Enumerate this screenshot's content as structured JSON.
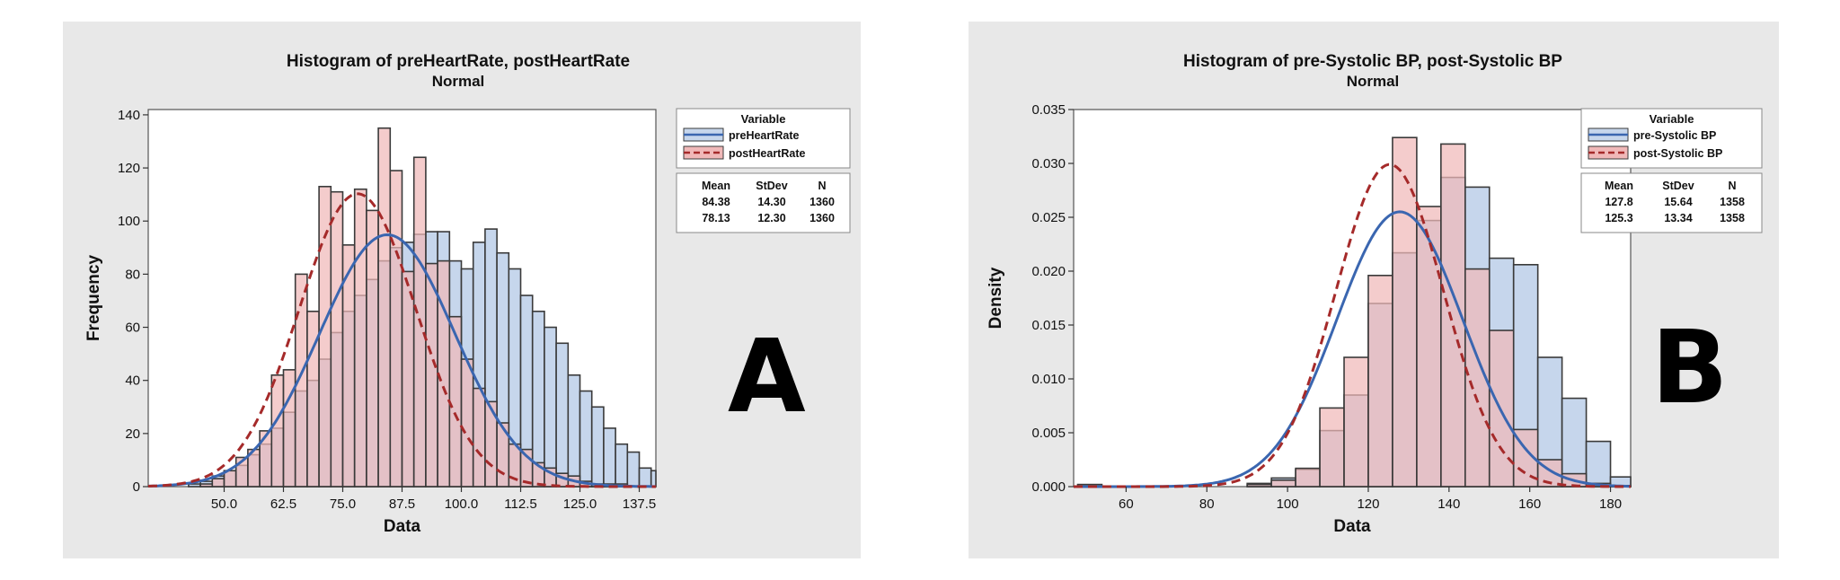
{
  "panels": [
    {
      "letter": "A",
      "chart_data": {
        "type": "bar",
        "title": "Histogram of preHeartRate, postHeartRate",
        "subtitle": "Normal",
        "xlabel": "Data",
        "ylabel": "Frequency",
        "xlim": [
          34,
          141
        ],
        "ylim": [
          0,
          142
        ],
        "x_ticks": [
          50.0,
          62.5,
          75.0,
          87.5,
          100.0,
          112.5,
          125.0,
          137.5
        ],
        "x_tick_labels": [
          "50.0",
          "62.5",
          "75.0",
          "87.5",
          "100.0",
          "112.5",
          "125.0",
          "137.5"
        ],
        "y_ticks": [
          0,
          20,
          40,
          60,
          80,
          100,
          120,
          140
        ],
        "y_tick_labels": [
          "0",
          "20",
          "40",
          "60",
          "80",
          "100",
          "120",
          "140"
        ],
        "bin_width": 2.5,
        "bin_start": 35,
        "legend_title": "Variable",
        "legend_position": "right",
        "stats_headers": [
          "Mean",
          "StDev",
          "N"
        ],
        "series": [
          {
            "name": "preHeartRate",
            "color": "#3a66b0",
            "fill": "#c6d6ec",
            "line": "solid",
            "mean": "84.38",
            "stdev": "14.30",
            "n": "1360",
            "mean_num": 84.38,
            "sd_num": 14.3,
            "n_num": 1360,
            "values": [
              0,
              0,
              0,
              1,
              2,
              4,
              6,
              8,
              12,
              16,
              22,
              28,
              36,
              40,
              48,
              58,
              66,
              72,
              78,
              85,
              90,
              92,
              95,
              96,
              96,
              85,
              82,
              92,
              97,
              88,
              82,
              72,
              66,
              60,
              54,
              42,
              36,
              30,
              22,
              16,
              13,
              7,
              6,
              4,
              3,
              2,
              1,
              1,
              0,
              0,
              0,
              0,
              0,
              0,
              2,
              0,
              0,
              0
            ]
          },
          {
            "name": "postHeartRate",
            "color": "#a52a2a",
            "fill": "#f0b8b8",
            "line": "dashed",
            "mean": "78.13",
            "stdev": "12.30",
            "n": "1360",
            "mean_num": 78.13,
            "sd_num": 12.3,
            "n_num": 1360,
            "values": [
              0,
              0,
              0,
              0,
              1,
              3,
              6,
              11,
              14,
              21,
              42,
              44,
              80,
              66,
              113,
              111,
              91,
              112,
              104,
              135,
              119,
              81,
              124,
              84,
              85,
              64,
              48,
              37,
              32,
              24,
              16,
              14,
              9,
              7,
              5,
              4,
              2,
              1,
              1,
              1,
              0,
              0,
              0,
              0,
              0,
              0,
              0,
              0,
              0,
              0,
              0,
              0,
              0,
              0,
              0,
              0,
              0,
              0
            ]
          }
        ]
      }
    },
    {
      "letter": "B",
      "chart_data": {
        "type": "bar",
        "title": "Histogram of pre-Systolic BP, post-Systolic BP",
        "subtitle": "Normal",
        "xlabel": "Data",
        "ylabel": "Density",
        "xlim": [
          47,
          185
        ],
        "ylim": [
          0,
          0.035
        ],
        "x_ticks": [
          60,
          80,
          100,
          120,
          140,
          160,
          180
        ],
        "x_tick_labels": [
          "60",
          "80",
          "100",
          "120",
          "140",
          "160",
          "180"
        ],
        "y_ticks": [
          0,
          0.005,
          0.01,
          0.015,
          0.02,
          0.025,
          0.03,
          0.035
        ],
        "y_tick_labels": [
          "0.000",
          "0.005",
          "0.010",
          "0.015",
          "0.020",
          "0.025",
          "0.030",
          "0.035"
        ],
        "bin_width": 6,
        "bin_start": 48,
        "legend_title": "Variable",
        "legend_position": "right",
        "stats_headers": [
          "Mean",
          "StDev",
          "N"
        ],
        "series": [
          {
            "name": "pre-Systolic BP",
            "color": "#3a66b0",
            "fill": "#c6d6ec",
            "line": "solid",
            "mean": "127.8",
            "stdev": "15.64",
            "n": "1358",
            "mean_num": 127.8,
            "sd_num": 15.64,
            "n_num": 1358,
            "values": [
              0.0002,
              0,
              0,
              0,
              0,
              0,
              0,
              0.0003,
              0.0008,
              0.0016,
              0.0052,
              0.0085,
              0.017,
              0.0217,
              0.0247,
              0.0287,
              0.0278,
              0.0212,
              0.0206,
              0.012,
              0.0082,
              0.0042,
              0.0009,
              0.0003
            ]
          },
          {
            "name": "post-Systolic BP",
            "color": "#a52a2a",
            "fill": "#f0b8b8",
            "line": "dashed",
            "mean": "125.3",
            "stdev": "13.34",
            "n": "1358",
            "mean_num": 125.3,
            "sd_num": 13.34,
            "n_num": 1358,
            "values": [
              0,
              0,
              0,
              0,
              0,
              0,
              0,
              0.0002,
              0.0006,
              0.0017,
              0.0073,
              0.012,
              0.0196,
              0.0324,
              0.026,
              0.0318,
              0.0202,
              0.0145,
              0.0053,
              0.0025,
              0.0012,
              0.0003,
              0.0001,
              0
            ]
          }
        ]
      }
    }
  ]
}
